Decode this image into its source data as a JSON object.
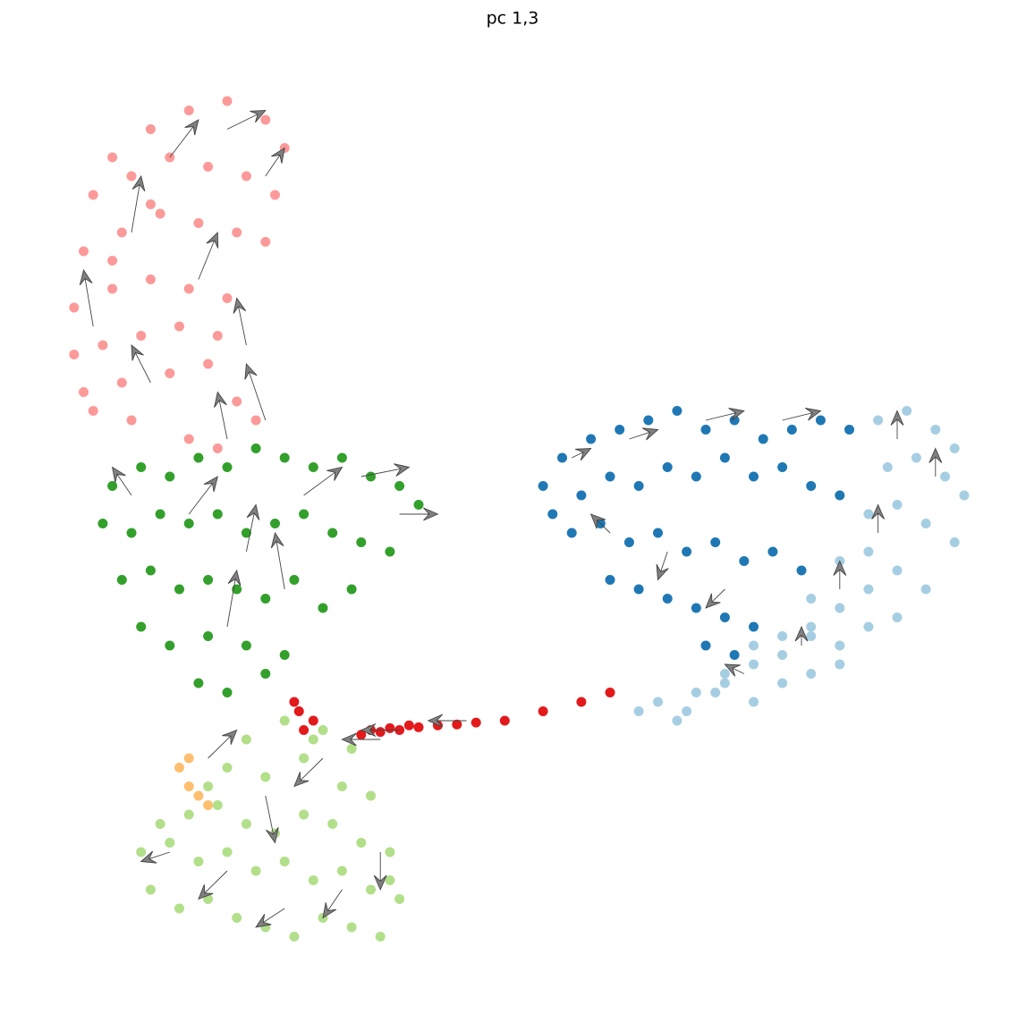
{
  "chart_data": {
    "type": "scatter",
    "title": "pc 1,3",
    "xlim": [
      0,
      100
    ],
    "ylim": [
      0,
      100
    ],
    "series": [
      {
        "color": "#fb9a99",
        "x": [
          8,
          12,
          16,
          20,
          24,
          26,
          6,
          10,
          14,
          18,
          22,
          25,
          5,
          9,
          13,
          17,
          21,
          24,
          4,
          8,
          12,
          16,
          20,
          4,
          7,
          11,
          15,
          19,
          5,
          9,
          14,
          18,
          6,
          10,
          16,
          21,
          19,
          23,
          8,
          12
        ],
        "y": [
          88,
          91,
          93,
          94,
          92,
          89,
          84,
          86,
          88,
          87,
          86,
          84,
          78,
          80,
          82,
          81,
          80,
          79,
          72,
          74,
          75,
          74,
          73,
          67,
          68,
          69,
          70,
          69,
          63,
          64,
          65,
          66,
          61,
          60,
          58,
          62,
          57,
          60,
          77,
          83
        ]
      },
      {
        "color": "#33a02c",
        "x": [
          8,
          11,
          14,
          17,
          20,
          23,
          26,
          29,
          32,
          35,
          38,
          40,
          7,
          10,
          13,
          16,
          19,
          22,
          25,
          28,
          31,
          34,
          37,
          9,
          12,
          15,
          18,
          21,
          24,
          27,
          30,
          33,
          11,
          14,
          18,
          22,
          26,
          17,
          20,
          24
        ],
        "y": [
          53,
          55,
          54,
          56,
          55,
          57,
          56,
          55,
          56,
          54,
          53,
          51,
          49,
          48,
          50,
          49,
          50,
          48,
          49,
          50,
          48,
          47,
          46,
          43,
          44,
          42,
          43,
          42,
          41,
          43,
          40,
          42,
          38,
          36,
          37,
          36,
          35,
          32,
          31,
          33
        ]
      },
      {
        "color": "#b2df8a",
        "x": [
          11,
          14,
          17,
          20,
          23,
          26,
          29,
          32,
          35,
          38,
          12,
          15,
          18,
          21,
          24,
          27,
          30,
          33,
          36,
          13,
          16,
          19,
          22,
          25,
          28,
          31,
          34,
          37,
          20,
          24,
          28,
          32,
          35,
          30,
          33,
          26,
          29,
          22,
          18,
          37
        ],
        "y": [
          14,
          15,
          13,
          14,
          12,
          13,
          11,
          12,
          10,
          9,
          10,
          8,
          9,
          7,
          6,
          5,
          7,
          6,
          5,
          17,
          18,
          19,
          17,
          16,
          18,
          17,
          15,
          14,
          23,
          22,
          24,
          21,
          20,
          27,
          25,
          28,
          26,
          26,
          21,
          11
        ]
      },
      {
        "color": "#1f78b4",
        "x": [
          53,
          55,
          58,
          61,
          64,
          67,
          70,
          73,
          76,
          79,
          82,
          85,
          54,
          57,
          60,
          63,
          66,
          69,
          72,
          75,
          78,
          81,
          84,
          56,
          59,
          62,
          65,
          68,
          71,
          74,
          77,
          80,
          60,
          63,
          66,
          69,
          72,
          75,
          70,
          73
        ],
        "y": [
          53,
          56,
          58,
          59,
          60,
          61,
          59,
          60,
          58,
          59,
          60,
          59,
          50,
          52,
          54,
          53,
          55,
          54,
          56,
          54,
          55,
          53,
          52,
          48,
          49,
          47,
          48,
          46,
          47,
          45,
          46,
          44,
          43,
          42,
          41,
          40,
          39,
          38,
          36,
          35
        ]
      },
      {
        "color": "#a6cee3",
        "x": [
          88,
          91,
          94,
          96,
          89,
          92,
          95,
          97,
          87,
          90,
          93,
          96,
          84,
          87,
          90,
          93,
          81,
          84,
          87,
          90,
          78,
          81,
          84,
          87,
          75,
          78,
          81,
          84,
          72,
          75,
          78,
          81,
          69,
          72,
          75,
          65,
          68,
          71,
          63,
          67
        ],
        "y": [
          60,
          61,
          59,
          57,
          55,
          56,
          54,
          52,
          50,
          51,
          49,
          47,
          45,
          46,
          44,
          42,
          41,
          40,
          42,
          39,
          37,
          38,
          36,
          38,
          36,
          35,
          37,
          34,
          33,
          34,
          32,
          33,
          31,
          32,
          30,
          30,
          29,
          31,
          29,
          28
        ]
      },
      {
        "color": "#e31a1c",
        "x": [
          27,
          27.5,
          28,
          29,
          34,
          35,
          36,
          37,
          38,
          39,
          40,
          42,
          44,
          46,
          49,
          53,
          57,
          60
        ],
        "y": [
          30,
          29,
          27,
          28,
          26.5,
          27,
          26.8,
          27.2,
          27,
          27.5,
          27.3,
          27.5,
          27.6,
          27.8,
          28,
          29,
          30,
          31
        ]
      },
      {
        "color": "#fdbf6f",
        "x": [
          15,
          16,
          17,
          18,
          16
        ],
        "y": [
          23,
          21,
          20,
          19,
          24
        ]
      }
    ],
    "arrows": {
      "color": "#808080",
      "x": [
        6,
        10,
        14,
        20,
        24,
        17,
        22,
        12,
        24,
        20,
        10,
        16,
        22,
        28,
        34,
        38,
        20,
        26,
        14,
        20,
        26,
        32,
        36,
        24,
        18,
        30,
        36,
        38,
        45,
        56,
        62,
        70,
        78,
        60,
        66,
        72,
        90,
        94,
        88,
        84,
        80,
        74
      ],
      "y": [
        70,
        80,
        88,
        91,
        86,
        75,
        68,
        64,
        60,
        58,
        52,
        50,
        46,
        52,
        54,
        50,
        38,
        42,
        14,
        12,
        8,
        10,
        14,
        20,
        24,
        24,
        26,
        27,
        28,
        56,
        58,
        60,
        60,
        48,
        46,
        42,
        58,
        54,
        48,
        42,
        36,
        33
      ],
      "u": [
        -1,
        1,
        3,
        4,
        2,
        2,
        -1,
        -2,
        -2,
        -1,
        -2,
        3,
        1,
        4,
        5,
        4,
        1,
        -1,
        -3,
        -3,
        -3,
        -2,
        0,
        1,
        3,
        -3,
        -4,
        -4,
        -4,
        2,
        3,
        4,
        4,
        -2,
        -1,
        -2,
        0,
        0,
        0,
        0,
        0,
        -2
      ],
      "v": [
        6,
        6,
        4,
        2,
        3,
        5,
        5,
        4,
        6,
        5,
        3,
        4,
        5,
        3,
        1,
        0,
        6,
        6,
        -1,
        -3,
        -2,
        -3,
        -4,
        -5,
        3,
        -3,
        0,
        0,
        0,
        1,
        1,
        1,
        1,
        2,
        -3,
        -2,
        3,
        3,
        3,
        3,
        2,
        1
      ]
    }
  }
}
